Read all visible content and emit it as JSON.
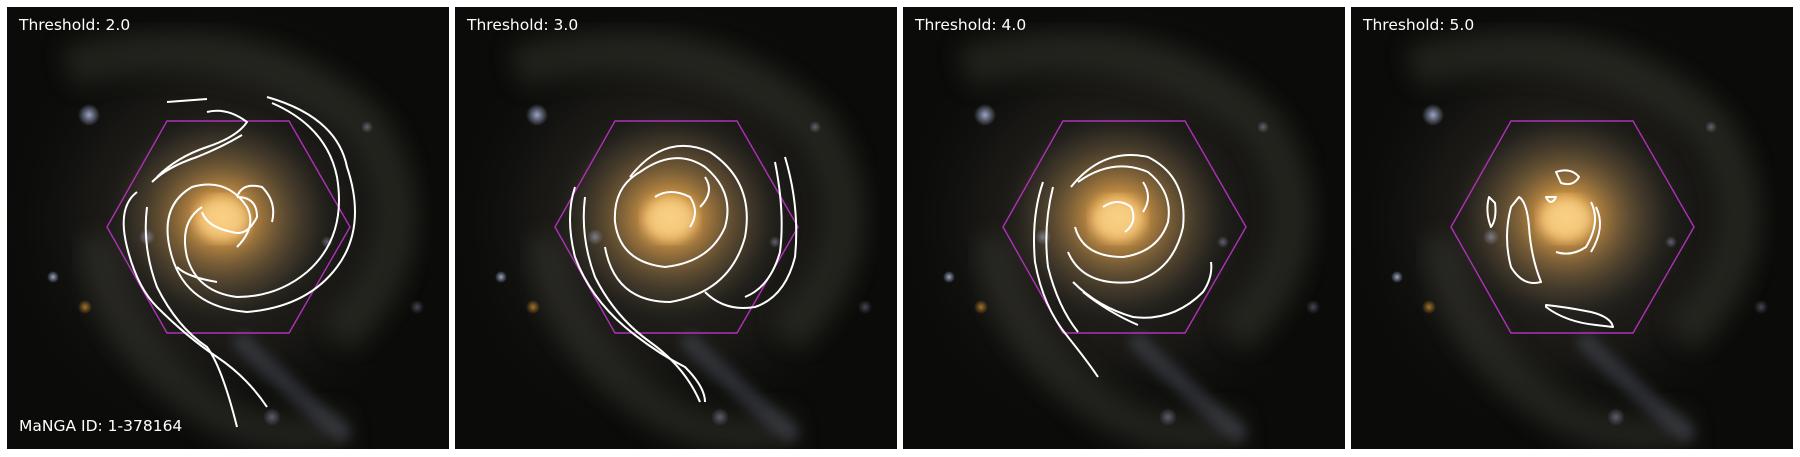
{
  "figure": {
    "manga_id_label": "MaNGA ID: 1-378164",
    "panels": [
      {
        "threshold_label": "Threshold: 2.0"
      },
      {
        "threshold_label": "Threshold: 3.0"
      },
      {
        "threshold_label": "Threshold: 4.0"
      },
      {
        "threshold_label": "Threshold: 5.0"
      }
    ]
  },
  "colors": {
    "background": "#0a0a08",
    "galaxy_core": "#e8a54a",
    "contour": "#ffffff",
    "ifu_hexagon": "#b030b8"
  },
  "icons": {
    "galaxy_image": "spiral-galaxy-image",
    "footprint": "hexagon-ifu-footprint"
  }
}
